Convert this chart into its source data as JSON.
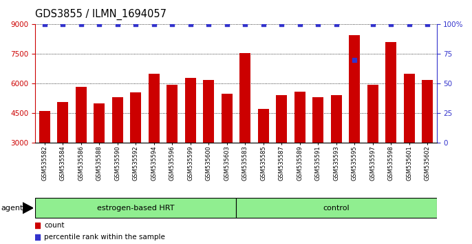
{
  "title": "GDS3855 / ILMN_1694057",
  "samples": [
    "GSM535582",
    "GSM535584",
    "GSM535586",
    "GSM535588",
    "GSM535590",
    "GSM535592",
    "GSM535594",
    "GSM535596",
    "GSM535599",
    "GSM535600",
    "GSM535603",
    "GSM535583",
    "GSM535585",
    "GSM535587",
    "GSM535589",
    "GSM535591",
    "GSM535593",
    "GSM535595",
    "GSM535597",
    "GSM535598",
    "GSM535601",
    "GSM535602"
  ],
  "bar_values": [
    4600,
    5050,
    5850,
    5000,
    5300,
    5550,
    6500,
    5950,
    6300,
    6200,
    5500,
    7550,
    4700,
    5400,
    5600,
    5300,
    5400,
    8450,
    5950,
    8100,
    6500,
    6200
  ],
  "percentile_values": [
    100,
    100,
    100,
    100,
    100,
    100,
    100,
    100,
    100,
    100,
    100,
    100,
    100,
    100,
    100,
    100,
    100,
    70,
    100,
    100,
    100,
    100
  ],
  "groups": [
    {
      "label": "estrogen-based HRT",
      "start": 0,
      "end": 11
    },
    {
      "label": "control",
      "start": 11,
      "end": 22
    }
  ],
  "bar_color": "#cc0000",
  "percentile_color": "#3333cc",
  "ylim_left": [
    3000,
    9000
  ],
  "ylim_right": [
    0,
    100
  ],
  "yticks_left": [
    3000,
    4500,
    6000,
    7500,
    9000
  ],
  "yticks_right": [
    0,
    25,
    50,
    75,
    100
  ],
  "group_color": "#90EE90",
  "agent_label": "agent"
}
